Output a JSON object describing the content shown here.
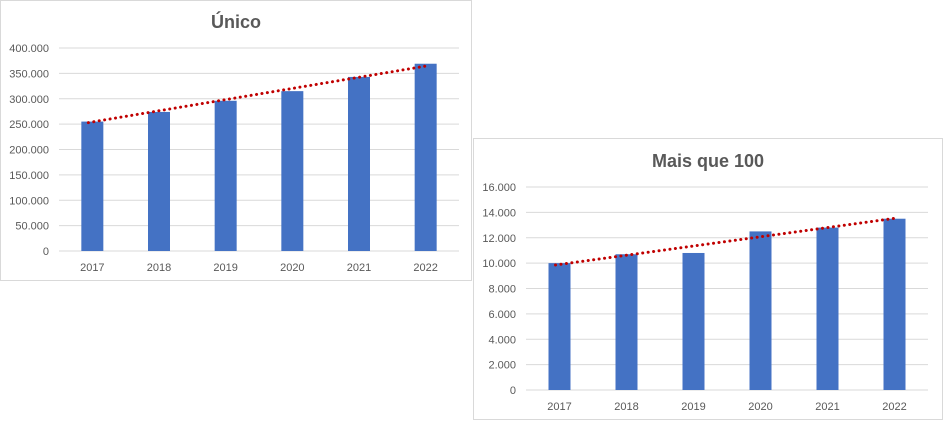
{
  "chart_data": [
    {
      "type": "bar",
      "title": "Único",
      "categories": [
        "2017",
        "2018",
        "2019",
        "2020",
        "2021",
        "2022"
      ],
      "values": [
        255000,
        274000,
        296000,
        315000,
        343000,
        369000
      ],
      "ylim": [
        0,
        400000
      ],
      "yticks": [
        0,
        50000,
        100000,
        150000,
        200000,
        250000,
        300000,
        350000,
        400000
      ],
      "ytick_labels": [
        "0",
        "50.000",
        "100.000",
        "150.000",
        "200.000",
        "250.000",
        "300.000",
        "350.000",
        "400.000"
      ],
      "trendline": {
        "type": "linear",
        "style": "dotted",
        "start": 253000,
        "end": 365000
      },
      "grid": true,
      "bar_color": "#4472c4",
      "trend_color": "#c00000"
    },
    {
      "type": "bar",
      "title": "Mais que 100",
      "categories": [
        "2017",
        "2018",
        "2019",
        "2020",
        "2021",
        "2022"
      ],
      "values": [
        10000,
        10700,
        10800,
        12500,
        12800,
        13500
      ],
      "ylim": [
        0,
        16000
      ],
      "yticks": [
        0,
        2000,
        4000,
        6000,
        8000,
        10000,
        12000,
        14000,
        16000
      ],
      "ytick_labels": [
        "0",
        "2.000",
        "4.000",
        "6.000",
        "8.000",
        "10.000",
        "12.000",
        "14.000",
        "16.000"
      ],
      "trendline": {
        "type": "linear",
        "style": "dotted",
        "start": 9850,
        "end": 13550
      },
      "grid": true,
      "bar_color": "#4472c4",
      "trend_color": "#c00000"
    }
  ]
}
